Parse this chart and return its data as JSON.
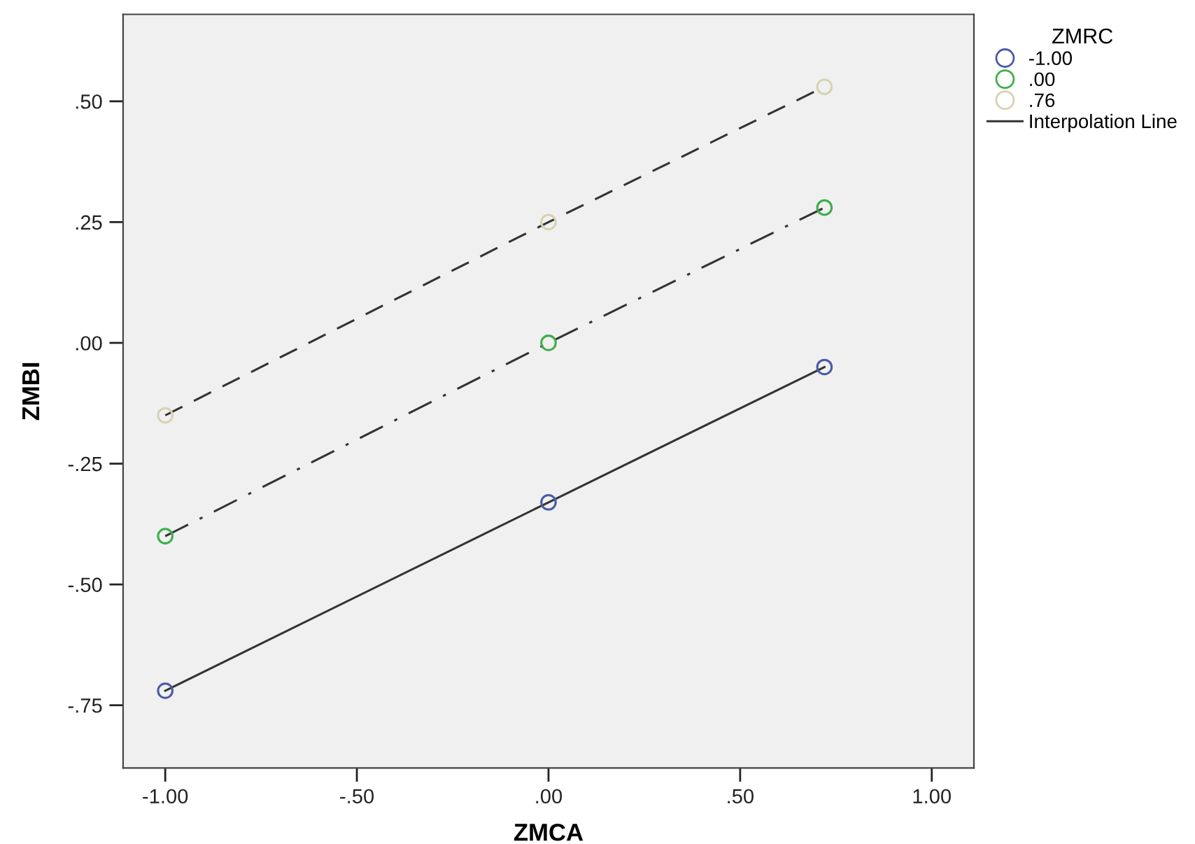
{
  "chart_data": {
    "type": "scatter",
    "xlabel": "ZMCA",
    "ylabel": "ZMBI",
    "legend_title": "ZMRC",
    "xlim": [
      -1.11,
      1.11
    ],
    "xticks": [
      {
        "value": -1,
        "label": "-1.00"
      },
      {
        "value": -0.5,
        "label": "-.50"
      },
      {
        "value": 0,
        "label": ".00"
      },
      {
        "value": 0.5,
        "label": ".50"
      },
      {
        "value": 1,
        "label": "1.00"
      }
    ],
    "ylim": [
      -0.88,
      0.68
    ],
    "yticks": [
      {
        "value": -0.75,
        "label": "-.75"
      },
      {
        "value": -0.5,
        "label": "-.50"
      },
      {
        "value": -0.25,
        "label": "-.25"
      },
      {
        "value": 0,
        "label": ".00"
      },
      {
        "value": 0.25,
        "label": ".25"
      },
      {
        "value": 0.5,
        "label": ".50"
      }
    ],
    "grid": false,
    "legend": "top right",
    "marker": "circle",
    "series": [
      {
        "name": "-1.00",
        "color": "#4a5aa8",
        "x": [
          -1,
          0,
          0.72
        ],
        "values": [
          -0.72,
          -0.33,
          -0.05
        ]
      },
      {
        "name": ".00",
        "color": "#3fae4a",
        "x": [
          -1,
          0,
          0.72
        ],
        "values": [
          -0.4,
          0.0,
          0.28
        ]
      },
      {
        "name": ".76",
        "color": "#d8d2b0",
        "x": [
          -1,
          0,
          0.72
        ],
        "values": [
          -0.15,
          0.25,
          0.53
        ]
      },
      {
        "name": "Interpolation Line",
        "type": "line",
        "color": "#333333",
        "line_style": "solid",
        "marker": "none",
        "x": [
          -1,
          0,
          0.72
        ],
        "values": [
          -0.72,
          -0.33,
          -0.05
        ]
      },
      {
        "type": "line",
        "color": "#333333",
        "line_style": "dashdot",
        "marker": "none",
        "x": [
          -1,
          0,
          0.72
        ],
        "values": [
          -0.4,
          0.0,
          0.28
        ]
      },
      {
        "type": "line",
        "color": "#333333",
        "line_style": "dashed",
        "marker": "none",
        "x": [
          -1,
          0,
          0.72
        ],
        "values": [
          -0.15,
          0.25,
          0.53
        ]
      }
    ]
  }
}
